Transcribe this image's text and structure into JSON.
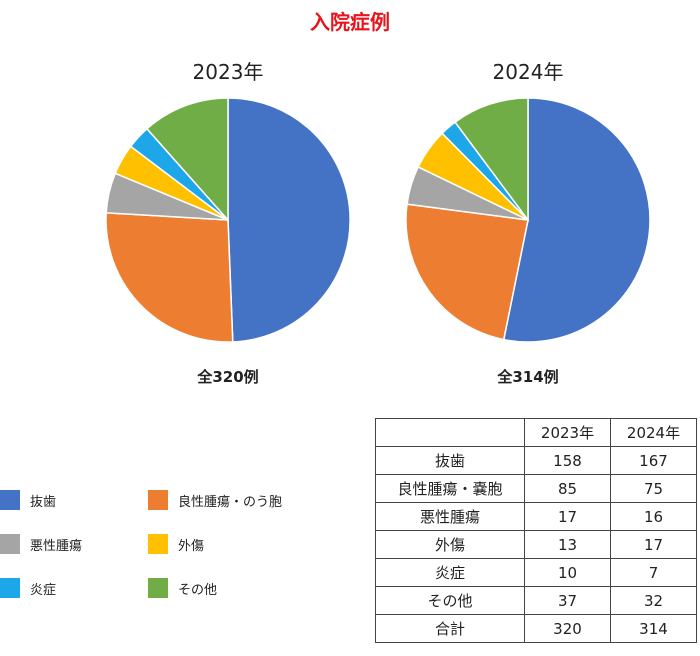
{
  "title": "入院症例",
  "colors": {
    "tooth_extraction": "#4472c4",
    "benign_tumor": "#ed7d31",
    "malignant_tumor": "#a5a5a5",
    "trauma": "#ffc000",
    "inflammation": "#1da7e8",
    "other": "#70ad47"
  },
  "chart_data": [
    {
      "type": "pie",
      "title": "2023年",
      "subtitle": "全320例",
      "categories": [
        "抜歯",
        "良性腫瘍・のう胞",
        "悪性腫瘍",
        "外傷",
        "炎症",
        "その他"
      ],
      "values": [
        158,
        85,
        17,
        13,
        10,
        37
      ]
    },
    {
      "type": "pie",
      "title": "2024年",
      "subtitle": "全314例",
      "categories": [
        "抜歯",
        "良性腫瘍・のう胞",
        "悪性腫瘍",
        "外傷",
        "炎症",
        "その他"
      ],
      "values": [
        167,
        75,
        16,
        17,
        7,
        32
      ]
    }
  ],
  "legend": {
    "items": [
      "抜歯",
      "良性腫瘍・のう胞",
      "悪性腫瘍",
      "外傷",
      "炎症",
      "その他"
    ]
  },
  "table": {
    "headers": [
      "",
      "2023年",
      "2024年"
    ],
    "rows": [
      [
        "抜歯",
        "158",
        "167"
      ],
      [
        "良性腫瘍・嚢胞",
        "85",
        "75"
      ],
      [
        "悪性腫瘍",
        "17",
        "16"
      ],
      [
        "外傷",
        "13",
        "17"
      ],
      [
        "炎症",
        "10",
        "7"
      ],
      [
        "その他",
        "37",
        "32"
      ],
      [
        "合計",
        "320",
        "314"
      ]
    ]
  }
}
